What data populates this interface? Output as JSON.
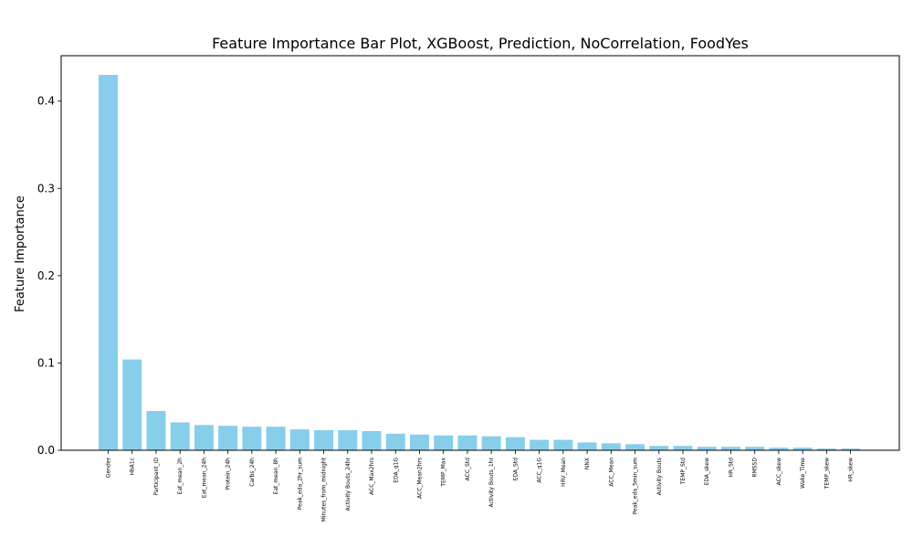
{
  "chart_data": {
    "type": "bar",
    "title": "Feature Importance Bar Plot, XGBoost, Prediction, NoCorrelation, FoodYes",
    "xlabel": "",
    "ylabel": "Feature Importance",
    "ylim": [
      0,
      0.452
    ],
    "yticks": [
      "0.0",
      "0.1",
      "0.2",
      "0.3",
      "0.4"
    ],
    "ytick_values": [
      0.0,
      0.1,
      0.2,
      0.3,
      0.4
    ],
    "grid": false,
    "bar_color": "#87CEEB",
    "categories": [
      "Gender",
      "HbA1c",
      "Participant_ID",
      "Eat_mean_2h",
      "Eat_mean_24h",
      "Protein_24h",
      "Carbs_24h",
      "Eat_mean_8h",
      "Peak_eda_2hr_sum",
      "Minutes_from_midnight",
      "Activity Bouts_24hr",
      "ACC_Max2hrs",
      "EDA_q1G",
      "ACC_Mean2hrs",
      "TEMP_Max",
      "ACC_Std",
      "Activity Bouts_1hr",
      "EDA_Std",
      "ACC_q1G",
      "HRV_Mean",
      "NNX",
      "ACC_Mean",
      "Peak_eda_5min_sum",
      "Activity Bouts",
      "TEMP_Std",
      "EDA_skew",
      "HR_Std",
      "RMSSD",
      "ACC_skew",
      "Wake_Time",
      "TEMP_skew",
      "HR_skew"
    ],
    "values": [
      0.43,
      0.104,
      0.045,
      0.032,
      0.029,
      0.028,
      0.027,
      0.027,
      0.024,
      0.023,
      0.023,
      0.022,
      0.019,
      0.018,
      0.017,
      0.017,
      0.016,
      0.015,
      0.012,
      0.012,
      0.009,
      0.008,
      0.007,
      0.005,
      0.005,
      0.004,
      0.004,
      0.004,
      0.003,
      0.003,
      0.002,
      0.002
    ]
  }
}
